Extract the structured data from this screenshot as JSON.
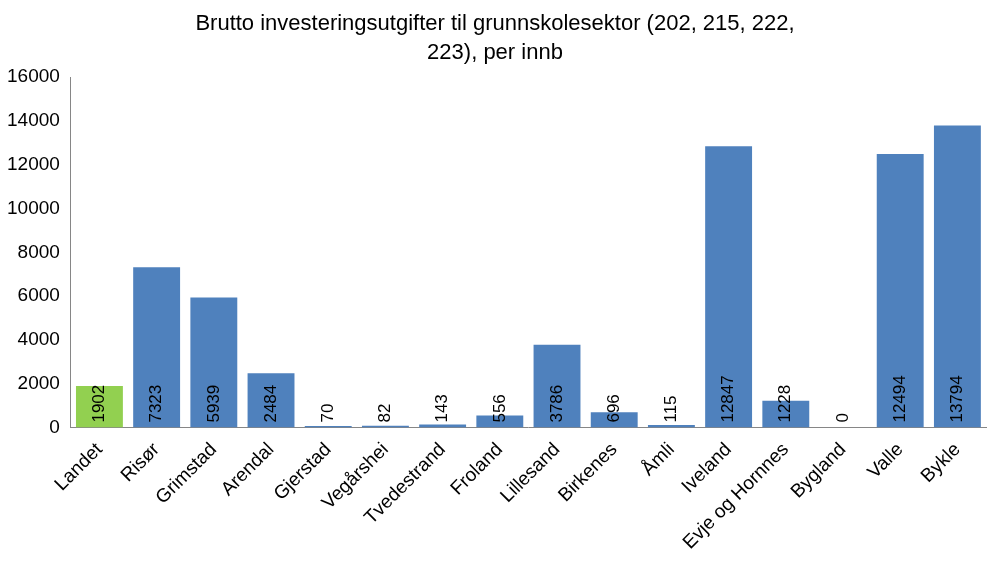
{
  "chart_data": {
    "type": "bar",
    "title": [
      "Brutto investeringsutgifter til grunnskolesektor (202, 215, 222,",
      "223), per innb"
    ],
    "categories": [
      "Landet",
      "Risør",
      "Grimstad",
      "Arendal",
      "Gjerstad",
      "Vegårshei",
      "Tvedestrand",
      "Froland",
      "Lillesand",
      "Birkenes",
      "Åmli",
      "Iveland",
      "Evje og Hornnes",
      "Bygland",
      "Valle",
      "Bykle"
    ],
    "values": [
      1902,
      7323,
      5939,
      2484,
      70,
      82,
      143,
      556,
      3786,
      696,
      115,
      12847,
      1228,
      0,
      12494,
      13794
    ],
    "colors": [
      "#92d050",
      "#4f81bd",
      "#4f81bd",
      "#4f81bd",
      "#4f81bd",
      "#4f81bd",
      "#4f81bd",
      "#4f81bd",
      "#4f81bd",
      "#4f81bd",
      "#4f81bd",
      "#4f81bd",
      "#4f81bd",
      "#4f81bd",
      "#4f81bd",
      "#4f81bd"
    ],
    "ylim": [
      0,
      16000
    ],
    "yticks": [
      0,
      2000,
      4000,
      6000,
      8000,
      10000,
      12000,
      14000,
      16000
    ],
    "grid": false,
    "data_labels": true
  }
}
